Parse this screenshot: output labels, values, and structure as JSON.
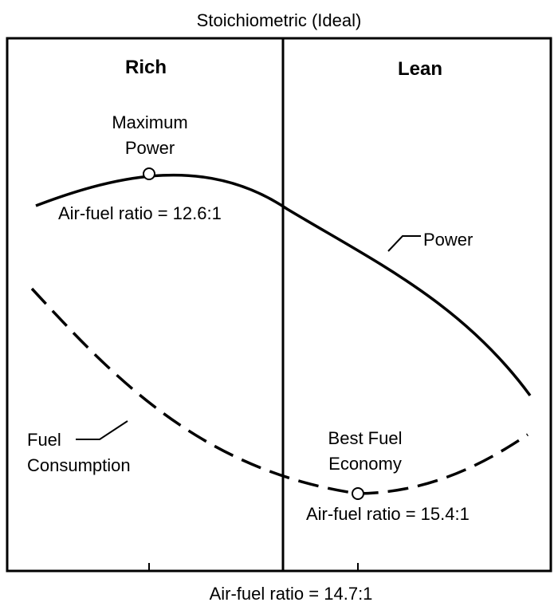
{
  "title": "Stoichiometric (Ideal)",
  "regions": {
    "left": "Rich",
    "right": "Lean"
  },
  "annotations": {
    "max_power_line1": "Maximum",
    "max_power_line2": "Power",
    "max_power_ratio": "Air-fuel ratio = 12.6:1",
    "power_curve": "Power",
    "fuel_line1": "Fuel",
    "fuel_line2": "Consumption",
    "economy_line1": "Best Fuel",
    "economy_line2": "Economy",
    "economy_ratio": "Air-fuel ratio = 15.4:1"
  },
  "axis_label": "Air-fuel ratio = 14.7:1",
  "colors": {
    "ink": "#000000",
    "background": "#ffffff"
  }
}
